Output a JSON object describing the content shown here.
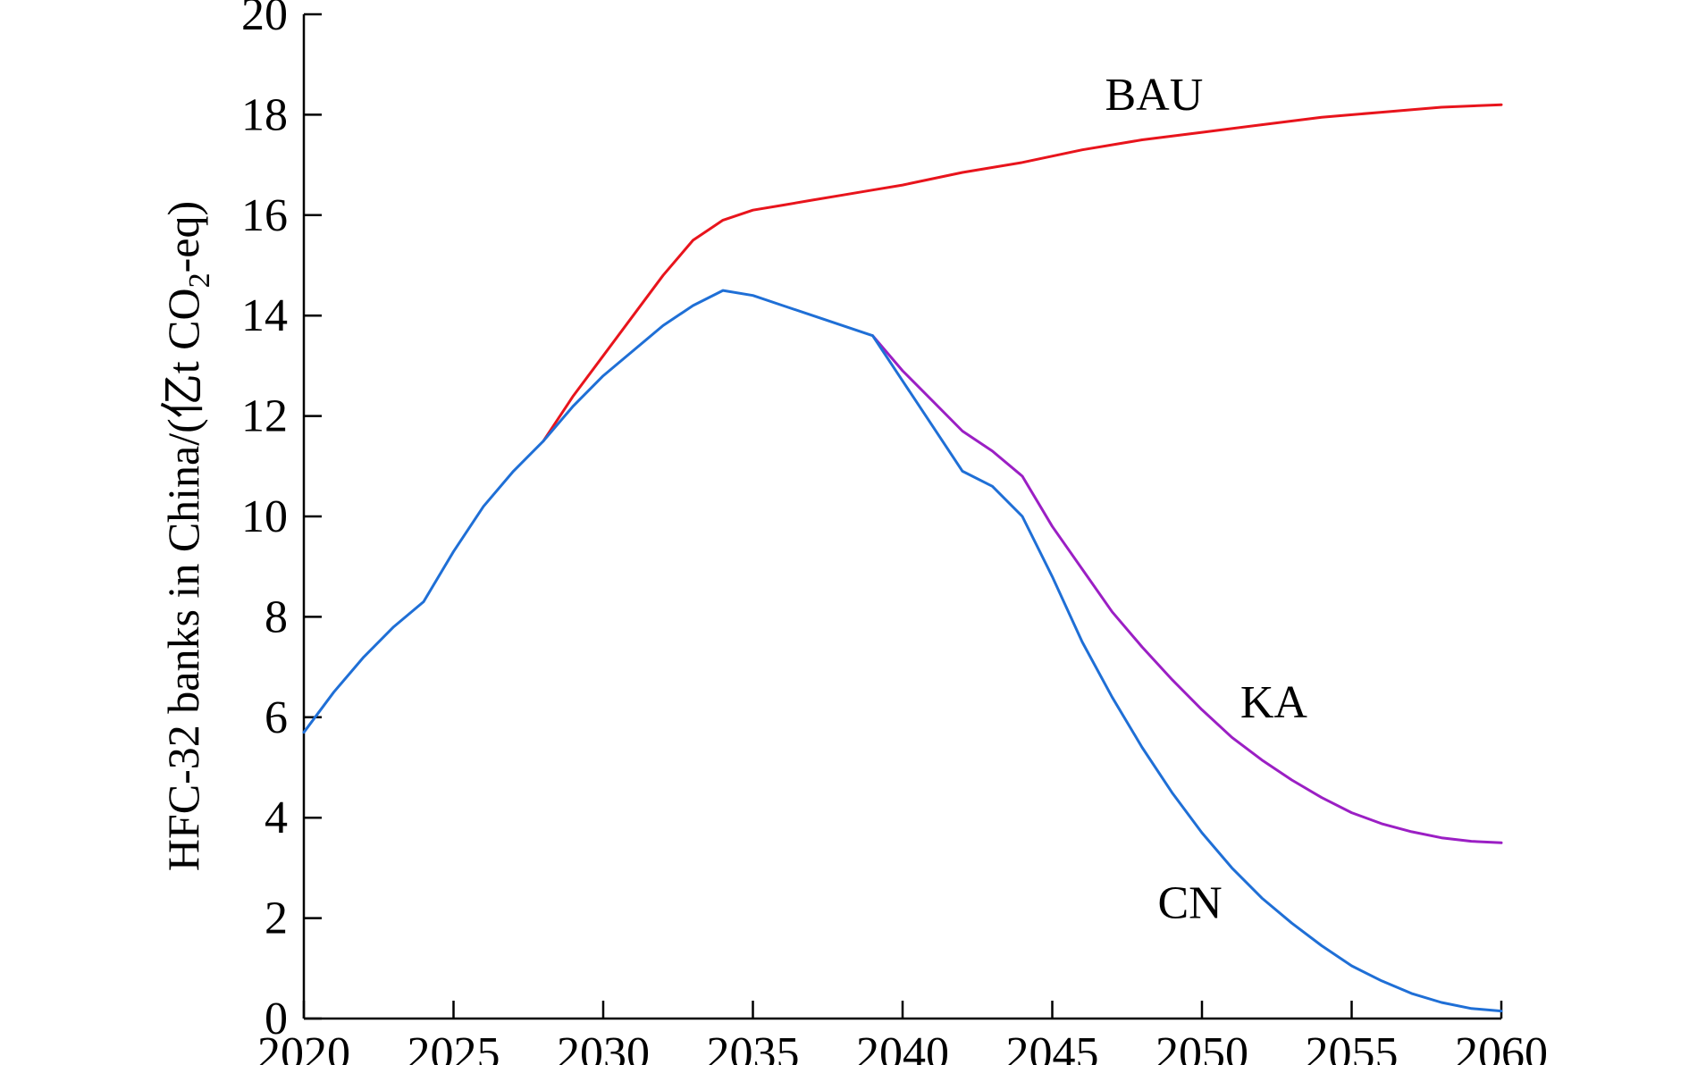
{
  "chart_data": {
    "type": "line",
    "title": "",
    "xlabel": "",
    "ylabel_parts": {
      "prefix": "HFC-32 banks in China/(亿t CO",
      "subscript": "2",
      "suffix": "-eq)"
    },
    "xlim": [
      2020,
      2060
    ],
    "ylim": [
      0,
      20
    ],
    "xticks": [
      2020,
      2025,
      2030,
      2035,
      2040,
      2045,
      2050,
      2055,
      2060
    ],
    "yticks": [
      0,
      2,
      4,
      6,
      8,
      10,
      12,
      14,
      16,
      18,
      20
    ],
    "grid": false,
    "series": [
      {
        "name": "BAU",
        "color": "#e8141c",
        "x": [
          2028,
          2029,
          2030,
          2031,
          2032,
          2033,
          2034,
          2035,
          2036,
          2037,
          2038,
          2039,
          2040,
          2042,
          2044,
          2046,
          2048,
          2050,
          2052,
          2054,
          2056,
          2058,
          2060
        ],
        "y": [
          11.5,
          12.4,
          13.2,
          14.0,
          14.8,
          15.5,
          15.9,
          16.1,
          16.2,
          16.3,
          16.4,
          16.5,
          16.6,
          16.85,
          17.05,
          17.3,
          17.5,
          17.65,
          17.8,
          17.95,
          18.05,
          18.15,
          18.2
        ]
      },
      {
        "name": "KA",
        "color": "#9b1fc4",
        "x": [
          2039,
          2040,
          2041,
          2042,
          2043,
          2044,
          2045,
          2046,
          2047,
          2048,
          2049,
          2050,
          2051,
          2052,
          2053,
          2054,
          2055,
          2056,
          2057,
          2058,
          2059,
          2060
        ],
        "y": [
          13.6,
          12.9,
          12.3,
          11.7,
          11.3,
          10.8,
          9.8,
          8.95,
          8.1,
          7.4,
          6.75,
          6.15,
          5.6,
          5.15,
          4.75,
          4.4,
          4.1,
          3.88,
          3.72,
          3.6,
          3.53,
          3.5
        ]
      },
      {
        "name": "CN",
        "color": "#1f6fd6",
        "x": [
          2020,
          2021,
          2022,
          2023,
          2024,
          2025,
          2026,
          2027,
          2028,
          2029,
          2030,
          2031,
          2032,
          2033,
          2034,
          2035,
          2036,
          2037,
          2038,
          2039,
          2040,
          2041,
          2042,
          2043,
          2044,
          2045,
          2046,
          2047,
          2048,
          2049,
          2050,
          2051,
          2052,
          2053,
          2054,
          2055,
          2056,
          2057,
          2058,
          2059,
          2060
        ],
        "y": [
          5.7,
          6.5,
          7.2,
          7.8,
          8.3,
          9.3,
          10.2,
          10.9,
          11.5,
          12.2,
          12.8,
          13.3,
          13.8,
          14.2,
          14.5,
          14.4,
          14.2,
          14.0,
          13.8,
          13.6,
          12.7,
          11.8,
          10.9,
          10.6,
          10.0,
          8.8,
          7.5,
          6.4,
          5.4,
          4.5,
          3.7,
          3.0,
          2.4,
          1.9,
          1.45,
          1.05,
          0.75,
          0.5,
          0.32,
          0.2,
          0.15
        ]
      }
    ],
    "annotations": [
      {
        "text": "BAU",
        "x": 2048.4,
        "y": 18.1
      },
      {
        "text": "KA",
        "x": 2052.4,
        "y": 6.0
      },
      {
        "text": "CN",
        "x": 2049.6,
        "y": 2.0
      }
    ]
  }
}
